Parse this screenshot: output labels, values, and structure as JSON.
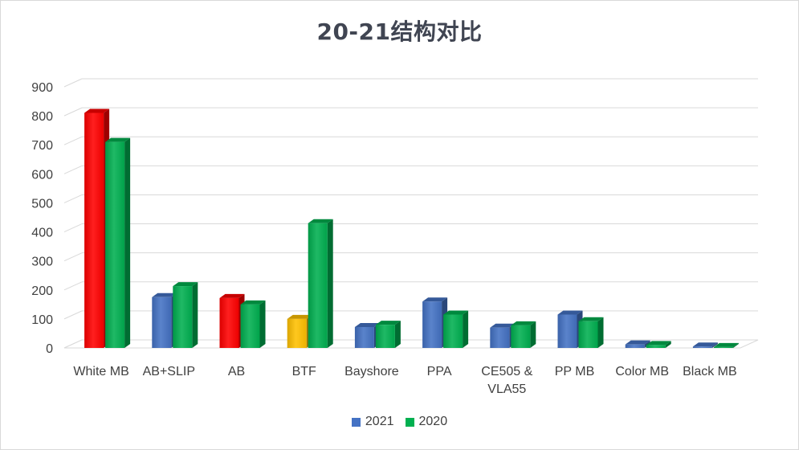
{
  "chart_data": {
    "type": "bar",
    "title": "20-21结构对比",
    "xlabel": "",
    "ylabel": "",
    "ylim": [
      0,
      900
    ],
    "yticks": [
      "0",
      "100",
      "200",
      "300",
      "400",
      "500",
      "600",
      "700",
      "800",
      "900"
    ],
    "grid": true,
    "legend_position": "bottom",
    "categories": [
      [
        "White MB"
      ],
      [
        "AB+SLIP"
      ],
      [
        "AB"
      ],
      [
        "BTF"
      ],
      [
        "Bayshore"
      ],
      [
        "PPA"
      ],
      [
        "CE505 &",
        "VLA55"
      ],
      [
        "PP MB"
      ],
      [
        "Color MB"
      ],
      [
        "Black MB"
      ]
    ],
    "series": [
      {
        "name": "2021",
        "color": "#4472C4",
        "values": [
          810,
          175,
          172,
          100,
          72,
          160,
          70,
          115,
          12,
          5
        ],
        "point_colors": [
          "#FF0000",
          null,
          "#FF0000",
          "#FFC000",
          null,
          null,
          null,
          null,
          null,
          null
        ]
      },
      {
        "name": "2020",
        "color": "#00B050",
        "values": [
          710,
          213,
          150,
          430,
          80,
          115,
          78,
          92,
          10,
          3
        ]
      }
    ]
  },
  "legend": {
    "items": [
      {
        "label": "2021",
        "color": "#4472C4"
      },
      {
        "label": "2020",
        "color": "#00B050"
      }
    ]
  }
}
